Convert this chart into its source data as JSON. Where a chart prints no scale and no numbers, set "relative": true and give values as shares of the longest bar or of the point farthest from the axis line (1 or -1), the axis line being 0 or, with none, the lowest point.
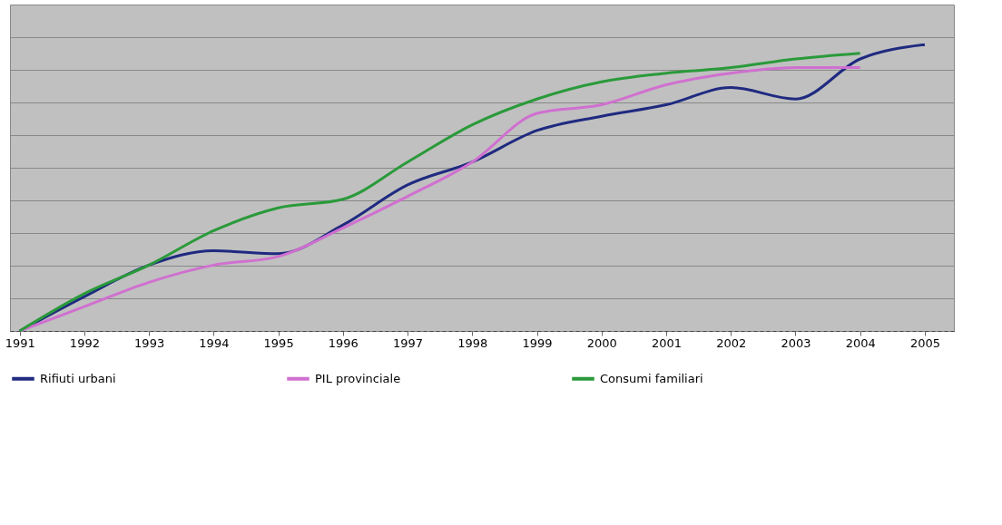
{
  "chart_data": {
    "type": "line",
    "relative": true,
    "categories": [
      "1991",
      "1992",
      "1993",
      "1994",
      "1995",
      "1996",
      "1997",
      "1998",
      "1999",
      "2000",
      "2001",
      "2002",
      "2003",
      "2004",
      "2005"
    ],
    "series": [
      {
        "name": "Rifiuti urbani",
        "color": "#1f2a80",
        "values": [
          0,
          0.12,
          0.23,
          0.28,
          0.27,
          0.37,
          0.51,
          0.59,
          0.7,
          0.75,
          0.79,
          0.85,
          0.81,
          0.95,
          1.0
        ]
      },
      {
        "name": "PIL provinciale",
        "color": "#d070d0",
        "values": [
          0,
          0.085,
          0.17,
          0.23,
          0.26,
          0.36,
          0.47,
          0.59,
          0.76,
          0.79,
          0.86,
          0.9,
          0.92,
          0.92,
          null
        ]
      },
      {
        "name": "Consumi familiari",
        "color": "#2a9a3a",
        "values": [
          0,
          0.13,
          0.23,
          0.35,
          0.43,
          0.46,
          0.59,
          0.72,
          0.81,
          0.87,
          0.9,
          0.92,
          0.95,
          0.97,
          null
        ]
      }
    ],
    "grid": "y",
    "legend": "bottom",
    "marker": "none",
    "line_style": "solid"
  }
}
